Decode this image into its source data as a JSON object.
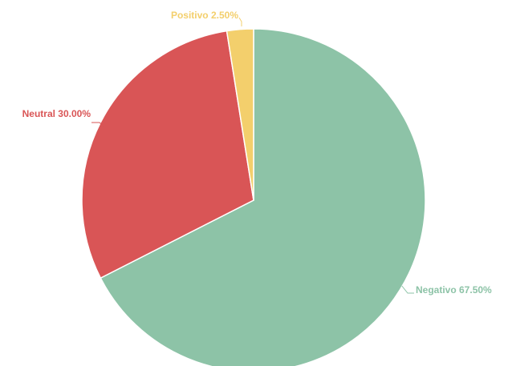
{
  "chart_data": {
    "type": "pie",
    "title": "",
    "slices": [
      {
        "name": "Negativo",
        "value": 67.5,
        "label": "Negativo 67.50%",
        "color": "#8dc3a7"
      },
      {
        "name": "Neutral",
        "value": 30.0,
        "label": "Neutral 30.00%",
        "color": "#d95556"
      },
      {
        "name": "Positivo",
        "value": 2.5,
        "label": "Positivo 2.50%",
        "color": "#f3cf6c"
      }
    ],
    "start_angle_deg": 0,
    "direction": "clockwise",
    "legend": "none"
  }
}
